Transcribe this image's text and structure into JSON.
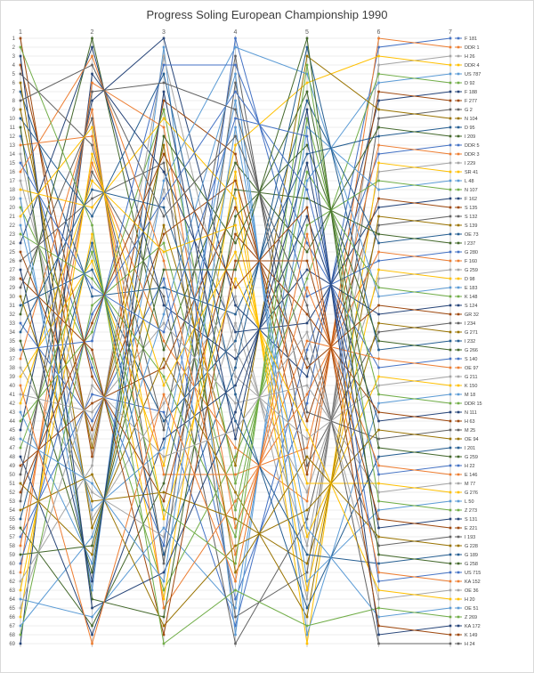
{
  "title": "Progress Soling European Championship 1990",
  "palette": [
    "#4472C4",
    "#ED7D31",
    "#A5A5A5",
    "#FFC000",
    "#5B9BD5",
    "#70AD47",
    "#264478",
    "#9E480E",
    "#636363",
    "#997300",
    "#255E91",
    "#43682B"
  ],
  "axis": {
    "race_ticks": [
      "1",
      "2",
      "3",
      "4",
      "5",
      "6",
      "7"
    ],
    "rank_first": 1,
    "rank_last": 69
  },
  "chart_data": {
    "type": "line",
    "subtype": "bump",
    "title": "Progress Soling European Championship 1990",
    "xlabel": "",
    "ylabel": "",
    "x": [
      1,
      2,
      3,
      4,
      5,
      6,
      7
    ],
    "ylim": [
      1,
      69
    ],
    "y_inverted": true,
    "grid": true,
    "legend_position": "right",
    "series": [
      {
        "name": "F 181",
        "ranks": [
          33,
          44,
          28,
          64,
          42,
          2,
          1
        ]
      },
      {
        "name": "DDR 1",
        "ranks": [
          58,
          15,
          35,
          47,
          53,
          1,
          2
        ]
      },
      {
        "name": "H 26",
        "ranks": [
          14,
          55,
          42,
          30,
          64,
          4,
          3
        ]
      },
      {
        "name": "DDR 4",
        "ranks": [
          39,
          26,
          49,
          13,
          6,
          3,
          4
        ]
      },
      {
        "name": "US 787",
        "ranks": [
          64,
          66,
          56,
          65,
          17,
          6,
          5
        ]
      },
      {
        "name": "D 92",
        "ranks": [
          20,
          37,
          63,
          48,
          28,
          5,
          6
        ]
      },
      {
        "name": "F 188",
        "ranks": [
          45,
          8,
          1,
          31,
          39,
          8,
          7
        ]
      },
      {
        "name": "F 277",
        "ranks": [
          1,
          48,
          8,
          14,
          50,
          7,
          8
        ]
      },
      {
        "name": "G 2",
        "ranks": [
          26,
          19,
          15,
          66,
          61,
          10,
          9
        ]
      },
      {
        "name": "N 104",
        "ranks": [
          51,
          59,
          22,
          49,
          3,
          9,
          10
        ]
      },
      {
        "name": "D 95",
        "ranks": [
          7,
          30,
          29,
          32,
          14,
          12,
          11
        ]
      },
      {
        "name": "I 209",
        "ranks": [
          32,
          1,
          36,
          15,
          25,
          11,
          12
        ]
      },
      {
        "name": "DDR 5",
        "ranks": [
          57,
          41,
          43,
          67,
          36,
          14,
          13
        ]
      },
      {
        "name": "DDR 3",
        "ranks": [
          13,
          12,
          50,
          50,
          47,
          13,
          14
        ]
      },
      {
        "name": "I 229",
        "ranks": [
          38,
          52,
          57,
          33,
          58,
          16,
          15
        ]
      },
      {
        "name": "SR 41",
        "ranks": [
          63,
          23,
          64,
          16,
          69,
          15,
          16
        ]
      },
      {
        "name": "L 48",
        "ranks": [
          19,
          63,
          2,
          68,
          11,
          18,
          17
        ]
      },
      {
        "name": "N 107",
        "ranks": [
          44,
          34,
          9,
          51,
          22,
          17,
          18
        ]
      },
      {
        "name": "F 162",
        "ranks": [
          69,
          5,
          16,
          34,
          33,
          20,
          19
        ]
      },
      {
        "name": "S 135",
        "ranks": [
          25,
          45,
          23,
          17,
          44,
          19,
          20
        ]
      },
      {
        "name": "S 132",
        "ranks": [
          50,
          16,
          30,
          69,
          55,
          22,
          21
        ]
      },
      {
        "name": "S 139",
        "ranks": [
          6,
          56,
          37,
          52,
          66,
          21,
          22
        ]
      },
      {
        "name": "OE 73",
        "ranks": [
          31,
          27,
          44,
          35,
          8,
          24,
          23
        ]
      },
      {
        "name": "I 237",
        "ranks": [
          56,
          67,
          51,
          18,
          19,
          23,
          24
        ]
      },
      {
        "name": "G 280",
        "ranks": [
          12,
          38,
          58,
          1,
          30,
          26,
          25
        ]
      },
      {
        "name": "F 160",
        "ranks": [
          37,
          9,
          65,
          53,
          41,
          25,
          26
        ]
      },
      {
        "name": "G 259",
        "ranks": [
          62,
          49,
          3,
          36,
          52,
          28,
          27
        ]
      },
      {
        "name": "D 98",
        "ranks": [
          18,
          20,
          10,
          19,
          63,
          27,
          28
        ]
      },
      {
        "name": "E 183",
        "ranks": [
          43,
          60,
          17,
          2,
          5,
          30,
          29
        ]
      },
      {
        "name": "K 148",
        "ranks": [
          68,
          31,
          24,
          54,
          16,
          29,
          30
        ]
      },
      {
        "name": "S 124",
        "ranks": [
          24,
          2,
          31,
          37,
          27,
          32,
          31
        ]
      },
      {
        "name": "GR 32",
        "ranks": [
          49,
          42,
          38,
          20,
          38,
          31,
          32
        ]
      },
      {
        "name": "I 234",
        "ranks": [
          5,
          13,
          45,
          3,
          49,
          34,
          33
        ]
      },
      {
        "name": "G 271",
        "ranks": [
          30,
          53,
          52,
          55,
          60,
          33,
          34
        ]
      },
      {
        "name": "I 232",
        "ranks": [
          55,
          24,
          59,
          38,
          2,
          36,
          35
        ]
      },
      {
        "name": "G 266",
        "ranks": [
          11,
          64,
          66,
          21,
          13,
          35,
          36
        ]
      },
      {
        "name": "S 140",
        "ranks": [
          36,
          35,
          4,
          4,
          24,
          38,
          37
        ]
      },
      {
        "name": "OE 97",
        "ranks": [
          61,
          6,
          11,
          56,
          35,
          37,
          38
        ]
      },
      {
        "name": "G 211",
        "ranks": [
          17,
          46,
          18,
          39,
          46,
          40,
          39
        ]
      },
      {
        "name": "K 150",
        "ranks": [
          42,
          17,
          25,
          22,
          57,
          39,
          40
        ]
      },
      {
        "name": "M 18",
        "ranks": [
          67,
          57,
          32,
          5,
          68,
          42,
          41
        ]
      },
      {
        "name": "DDR 15",
        "ranks": [
          23,
          28,
          39,
          57,
          10,
          41,
          42
        ]
      },
      {
        "name": "N 111",
        "ranks": [
          48,
          68,
          46,
          40,
          21,
          44,
          43
        ]
      },
      {
        "name": "H 63",
        "ranks": [
          4,
          39,
          53,
          23,
          32,
          43,
          44
        ]
      },
      {
        "name": "M 25",
        "ranks": [
          29,
          10,
          60,
          6,
          43,
          46,
          45
        ]
      },
      {
        "name": "OE 94",
        "ranks": [
          54,
          50,
          67,
          58,
          54,
          45,
          46
        ]
      },
      {
        "name": "I 201",
        "ranks": [
          10,
          21,
          5,
          41,
          65,
          48,
          47
        ]
      },
      {
        "name": "G 259",
        "ranks": [
          35,
          61,
          12,
          24,
          7,
          47,
          48
        ]
      },
      {
        "name": "H 22",
        "ranks": [
          60,
          32,
          19,
          7,
          18,
          50,
          49
        ]
      },
      {
        "name": "E 146",
        "ranks": [
          16,
          3,
          26,
          59,
          29,
          49,
          50
        ]
      },
      {
        "name": "M 77",
        "ranks": [
          41,
          43,
          33,
          42,
          40,
          52,
          51
        ]
      },
      {
        "name": "G 276",
        "ranks": [
          66,
          14,
          40,
          25,
          51,
          51,
          52
        ]
      },
      {
        "name": "L 50",
        "ranks": [
          22,
          54,
          47,
          8,
          62,
          54,
          53
        ]
      },
      {
        "name": "Z 273",
        "ranks": [
          47,
          25,
          54,
          60,
          4,
          53,
          54
        ]
      },
      {
        "name": "S 131",
        "ranks": [
          3,
          65,
          61,
          43,
          15,
          56,
          55
        ]
      },
      {
        "name": "E 221",
        "ranks": [
          28,
          36,
          68,
          26,
          26,
          55,
          56
        ]
      },
      {
        "name": "I 193",
        "ranks": [
          53,
          7,
          6,
          9,
          37,
          58,
          57
        ]
      },
      {
        "name": "G 228",
        "ranks": [
          9,
          47,
          13,
          61,
          48,
          57,
          58
        ]
      },
      {
        "name": "G 189",
        "ranks": [
          34,
          18,
          20,
          44,
          59,
          60,
          59
        ]
      },
      {
        "name": "G 258",
        "ranks": [
          59,
          58,
          27,
          27,
          1,
          59,
          60
        ]
      },
      {
        "name": "US 715",
        "ranks": [
          15,
          29,
          34,
          10,
          12,
          62,
          61
        ]
      },
      {
        "name": "KA 152",
        "ranks": [
          40,
          69,
          41,
          62,
          23,
          61,
          62
        ]
      },
      {
        "name": "OE 36",
        "ranks": [
          65,
          40,
          48,
          45,
          34,
          64,
          63
        ]
      },
      {
        "name": "H 20",
        "ranks": [
          21,
          11,
          55,
          28,
          45,
          63,
          64
        ]
      },
      {
        "name": "OE 51",
        "ranks": [
          46,
          51,
          62,
          11,
          56,
          66,
          65
        ]
      },
      {
        "name": "Z 269",
        "ranks": [
          2,
          22,
          69,
          63,
          67,
          65,
          66
        ]
      },
      {
        "name": "KA 172",
        "ranks": [
          27,
          62,
          7,
          46,
          9,
          68,
          67
        ]
      },
      {
        "name": "K 149",
        "ranks": [
          52,
          33,
          14,
          29,
          20,
          67,
          68
        ]
      },
      {
        "name": "H 24",
        "ranks": [
          8,
          4,
          21,
          12,
          31,
          69,
          69
        ]
      }
    ]
  }
}
